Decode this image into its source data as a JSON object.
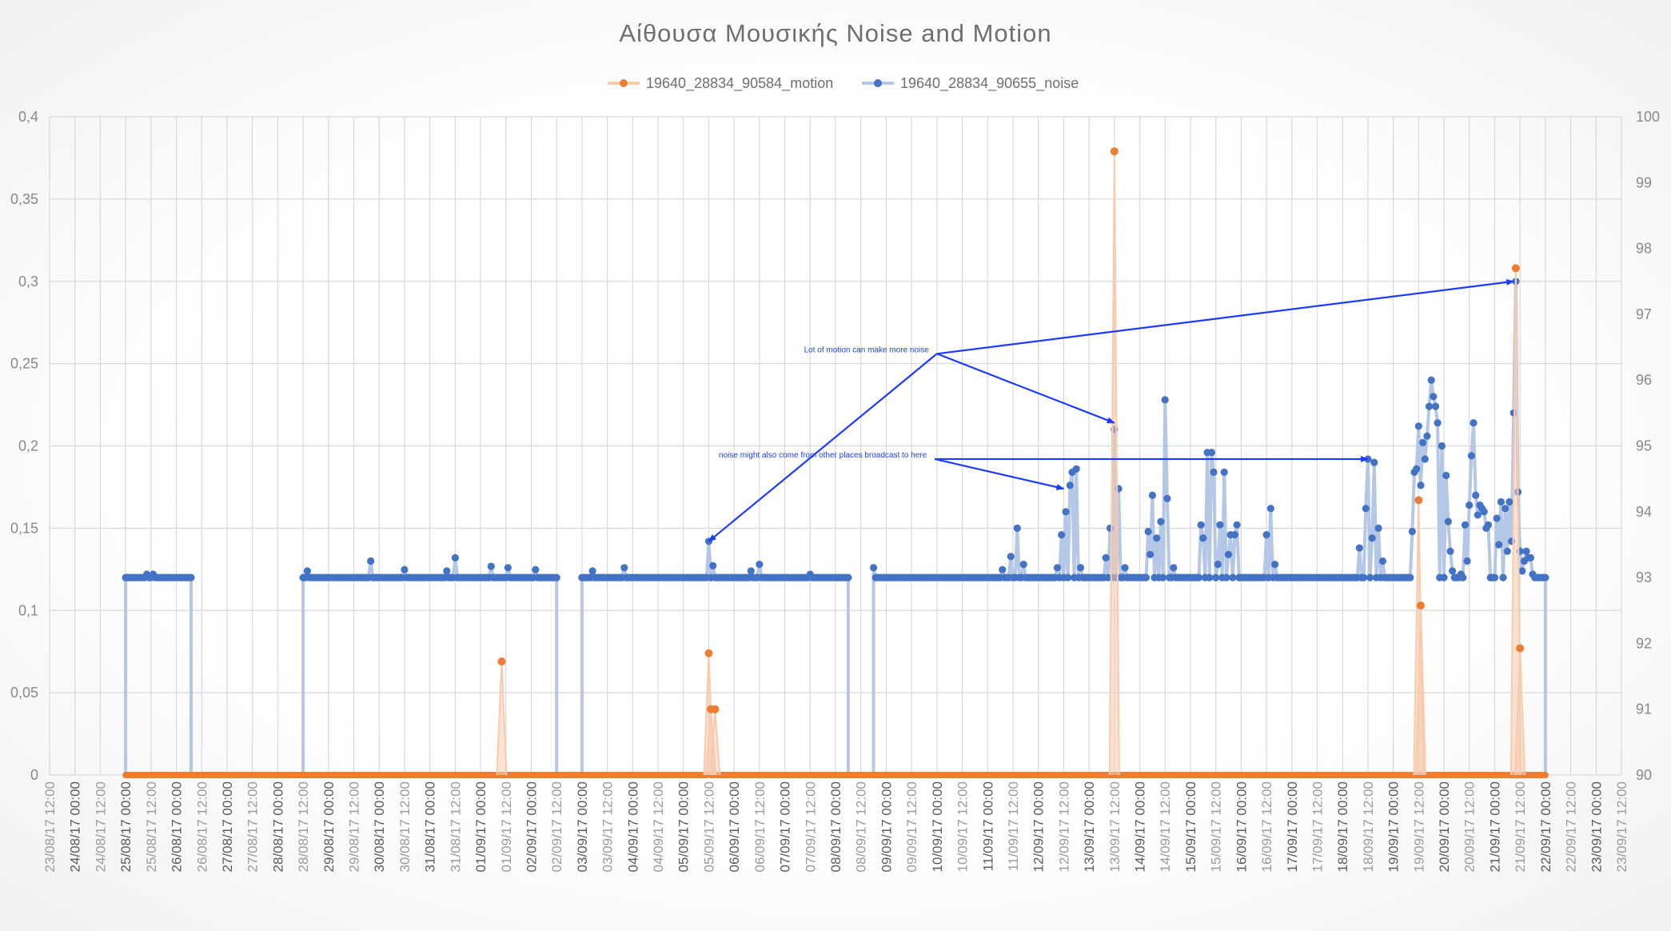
{
  "chart_data": {
    "type": "line",
    "title": "Αίθουσα Μουσικής Noise and Motion",
    "legend": {
      "placement": "top-center"
    },
    "grid": true,
    "x_range": [
      "23/08/17 12:00",
      "23/09/17 12:00"
    ],
    "x_tick_labels": [
      "23/08/17 12:00",
      "24/08/17 00:00",
      "24/08/17 12:00",
      "25/08/17 00:00",
      "25/08/17 12:00",
      "26/08/17 00:00",
      "26/08/17 12:00",
      "27/08/17 00:00",
      "27/08/17 12:00",
      "28/08/17 00:00",
      "28/08/17 12:00",
      "29/08/17 00:00",
      "29/08/17 12:00",
      "30/08/17 00:00",
      "30/08/17 12:00",
      "31/08/17 00:00",
      "31/08/17 12:00",
      "01/09/17 00:00",
      "01/09/17 12:00",
      "02/09/17 00:00",
      "02/09/17 12:00",
      "03/09/17 00:00",
      "03/09/17 12:00",
      "04/09/17 00:00",
      "04/09/17 12:00",
      "05/09/17 00:00",
      "05/09/17 12:00",
      "06/09/17 00:00",
      "06/09/17 12:00",
      "07/09/17 00:00",
      "07/09/17 12:00",
      "08/09/17 00:00",
      "08/09/17 12:00",
      "09/09/17 00:00",
      "09/09/17 12:00",
      "10/09/17 00:00",
      "10/09/17 12:00",
      "11/09/17 00:00",
      "11/09/17 12:00",
      "12/09/17 00:00",
      "12/09/17 12:00",
      "13/09/17 00:00",
      "13/09/17 12:00",
      "14/09/17 00:00",
      "14/09/17 12:00",
      "15/09/17 00:00",
      "15/09/17 12:00",
      "16/09/17 00:00",
      "16/09/17 12:00",
      "17/09/17 00:00",
      "17/09/17 12:00",
      "18/09/17 00:00",
      "18/09/17 12:00",
      "19/09/17 00:00",
      "19/09/17 12:00",
      "20/09/17 00:00",
      "20/09/17 12:00",
      "21/09/17 00:00",
      "21/09/17 12:00",
      "22/09/17 00:00",
      "22/09/17 12:00",
      "23/09/17 00:00",
      "23/09/17 12:00"
    ],
    "y_left": {
      "min": 0,
      "max": 0.4,
      "ticks": [
        "0",
        "0,05",
        "0,1",
        "0,15",
        "0,2",
        "0,25",
        "0,3",
        "0,35",
        "0,4"
      ]
    },
    "y_right": {
      "min": 90,
      "max": 100,
      "ticks": [
        "90",
        "91",
        "92",
        "93",
        "94",
        "95",
        "96",
        "97",
        "98",
        "99",
        "100"
      ]
    },
    "series": [
      {
        "name": "19640_28834_90584_motion",
        "axis": "left",
        "color": "#ED7D31",
        "line_color": "#F8CBAD",
        "x": [
          "25/08/17 00:00",
          "05/09/17 11:00",
          "05/09/17 13:00",
          "13/09/17 12:00",
          "19/09/17 12:00",
          "21/09/17 11:00",
          "22/09/17 00:00"
        ],
        "y": [
          0,
          0,
          0,
          0,
          0,
          0,
          0
        ],
        "gaps_after": [
          0,
          1
        ],
        "range_baseline": true,
        "points": [
          {
            "x": "01/09/17 10:00",
            "y": 0.069
          },
          {
            "x": "05/09/17 12:00",
            "y": 0.074
          },
          {
            "x": "05/09/17 13:00",
            "y": 0.04
          },
          {
            "x": "05/09/17 15:00",
            "y": 0.04
          },
          {
            "x": "13/09/17 12:00",
            "y": 0.379
          },
          {
            "x": "19/09/17 12:00",
            "y": 0.167
          },
          {
            "x": "19/09/17 13:00",
            "y": 0.103
          },
          {
            "x": "21/09/17 10:00",
            "y": 0.308
          },
          {
            "x": "21/09/17 12:00",
            "y": 0.077
          }
        ]
      },
      {
        "name": "19640_28834_90655_noise",
        "axis": "right",
        "color": "#4472C4",
        "line_color": "#B4C7E7",
        "segments": [
          {
            "from": "25/08/17 00:00",
            "to": "26/08/17 07:00",
            "base": 93.0,
            "bumps": [
              [
                "25/08/17 10:00",
                93.05
              ],
              [
                "25/08/17 13:00",
                93.05
              ]
            ]
          },
          {
            "from": "28/08/17 12:00",
            "to": "02/09/17 12:00",
            "base": 93.0,
            "bumps": [
              [
                "28/08/17 14:00",
                93.1
              ],
              [
                "29/08/17 20:00",
                93.25
              ],
              [
                "30/08/17 12:00",
                93.12
              ],
              [
                "31/08/17 08:00",
                93.1
              ],
              [
                "31/08/17 12:00",
                93.3
              ],
              [
                "01/09/17 05:00",
                93.17
              ],
              [
                "01/09/17 13:00",
                93.15
              ],
              [
                "02/09/17 02:00",
                93.12
              ]
            ]
          },
          {
            "from": "03/09/17 00:00",
            "to": "08/09/17 06:00",
            "base": 93.0,
            "bumps": [
              [
                "03/09/17 05:00",
                93.1
              ],
              [
                "03/09/17 20:00",
                93.15
              ],
              [
                "05/09/17 12:00",
                93.55
              ],
              [
                "05/09/17 14:00",
                93.18
              ],
              [
                "06/09/17 08:00",
                93.1
              ],
              [
                "06/09/17 12:00",
                93.2
              ],
              [
                "07/09/17 12:00",
                93.05
              ]
            ]
          },
          {
            "from": "08/09/17 18:00",
            "to": "22/09/17 00:00",
            "base": 93.0,
            "bumps": [
              [
                "08/09/17 18:00",
                93.15
              ],
              [
                "11/09/17 07:00",
                93.12
              ],
              [
                "11/09/17 11:00",
                93.32
              ],
              [
                "11/09/17 14:00",
                93.75
              ],
              [
                "11/09/17 17:00",
                93.2
              ],
              [
                "12/09/17 09:00",
                93.15
              ],
              [
                "12/09/17 11:00",
                93.65
              ],
              [
                "12/09/17 13:00",
                94.0
              ],
              [
                "12/09/17 15:00",
                94.4
              ],
              [
                "12/09/17 16:00",
                94.6
              ],
              [
                "12/09/17 18:00",
                94.65
              ],
              [
                "12/09/17 20:00",
                93.15
              ],
              [
                "13/09/17 08:00",
                93.3
              ],
              [
                "13/09/17 10:00",
                93.75
              ],
              [
                "13/09/17 12:00",
                95.25
              ],
              [
                "13/09/17 14:00",
                94.35
              ],
              [
                "13/09/17 17:00",
                93.15
              ],
              [
                "14/09/17 04:00",
                93.7
              ],
              [
                "14/09/17 05:00",
                93.35
              ],
              [
                "14/09/17 06:00",
                94.25
              ],
              [
                "14/09/17 08:00",
                93.6
              ],
              [
                "14/09/17 10:00",
                93.85
              ],
              [
                "14/09/17 12:00",
                95.7
              ],
              [
                "14/09/17 13:00",
                94.2
              ],
              [
                "14/09/17 16:00",
                93.15
              ],
              [
                "15/09/17 05:00",
                93.8
              ],
              [
                "15/09/17 06:00",
                93.6
              ],
              [
                "15/09/17 08:00",
                94.9
              ],
              [
                "15/09/17 10:00",
                94.9
              ],
              [
                "15/09/17 11:00",
                94.6
              ],
              [
                "15/09/17 13:00",
                93.2
              ],
              [
                "15/09/17 14:00",
                93.8
              ],
              [
                "15/09/17 16:00",
                94.6
              ],
              [
                "15/09/17 18:00",
                93.35
              ],
              [
                "15/09/17 19:00",
                93.65
              ],
              [
                "15/09/17 21:00",
                93.65
              ],
              [
                "15/09/17 22:00",
                93.8
              ],
              [
                "16/09/17 12:00",
                93.65
              ],
              [
                "16/09/17 14:00",
                94.05
              ],
              [
                "16/09/17 16:00",
                93.2
              ],
              [
                "18/09/17 08:00",
                93.45
              ],
              [
                "18/09/17 11:00",
                94.05
              ],
              [
                "18/09/17 12:00",
                94.8
              ],
              [
                "18/09/17 14:00",
                93.6
              ],
              [
                "18/09/17 15:00",
                94.75
              ],
              [
                "18/09/17 17:00",
                93.75
              ],
              [
                "18/09/17 19:00",
                93.25
              ],
              [
                "19/09/17 09:00",
                93.7
              ],
              [
                "19/09/17 10:00",
                94.6
              ],
              [
                "19/09/17 11:00",
                94.65
              ],
              [
                "19/09/17 12:00",
                95.3
              ],
              [
                "19/09/17 13:00",
                94.4
              ],
              [
                "19/09/17 14:00",
                95.05
              ],
              [
                "19/09/17 15:00",
                94.8
              ],
              [
                "19/09/17 16:00",
                95.15
              ],
              [
                "19/09/17 17:00",
                95.6
              ],
              [
                "19/09/17 18:00",
                96.0
              ],
              [
                "19/09/17 19:00",
                95.75
              ],
              [
                "19/09/17 20:00",
                95.6
              ],
              [
                "19/09/17 21:00",
                95.35
              ],
              [
                "19/09/17 23:00",
                95.0
              ],
              [
                "20/09/17 01:00",
                94.55
              ],
              [
                "20/09/17 02:00",
                93.85
              ],
              [
                "20/09/17 03:00",
                93.4
              ],
              [
                "20/09/17 04:00",
                93.1
              ],
              [
                "20/09/17 06:00",
                93.0
              ],
              [
                "20/09/17 08:00",
                93.05
              ],
              [
                "20/09/17 10:00",
                93.8
              ],
              [
                "20/09/17 11:00",
                93.25
              ],
              [
                "20/09/17 12:00",
                94.1
              ],
              [
                "20/09/17 13:00",
                94.85
              ],
              [
                "20/09/17 14:00",
                95.35
              ],
              [
                "20/09/17 15:00",
                94.25
              ],
              [
                "20/09/17 16:00",
                93.95
              ],
              [
                "20/09/17 17:00",
                94.1
              ],
              [
                "20/09/17 18:00",
                94.05
              ],
              [
                "20/09/17 19:00",
                94.0
              ],
              [
                "20/09/17 20:00",
                93.75
              ],
              [
                "20/09/17 21:00",
                93.8
              ],
              [
                "21/09/17 01:00",
                93.9
              ],
              [
                "21/09/17 02:00",
                93.5
              ],
              [
                "21/09/17 03:00",
                94.15
              ],
              [
                "21/09/17 05:00",
                94.05
              ],
              [
                "21/09/17 06:00",
                93.4
              ],
              [
                "21/09/17 07:00",
                94.15
              ],
              [
                "21/09/17 08:00",
                93.55
              ],
              [
                "21/09/17 09:00",
                95.5
              ],
              [
                "21/09/17 10:00",
                97.5
              ],
              [
                "21/09/17 11:00",
                94.3
              ],
              [
                "21/09/17 12:00",
                93.4
              ],
              [
                "21/09/17 13:00",
                93.1
              ],
              [
                "21/09/17 14:00",
                93.25
              ],
              [
                "21/09/17 15:00",
                93.4
              ],
              [
                "21/09/17 16:00",
                93.3
              ],
              [
                "21/09/17 17:00",
                93.3
              ],
              [
                "21/09/17 18:00",
                93.05
              ]
            ]
          }
        ]
      }
    ],
    "annotations": [
      {
        "text": "Lot of motion can make more noise",
        "tail": {
          "x": "10/09/17 00:00",
          "y": 96.4
        },
        "heads": [
          {
            "x": "05/09/17 12:00",
            "y": 93.55
          },
          {
            "x": "13/09/17 12:00",
            "y": 95.35
          },
          {
            "x": "21/09/17 09:00",
            "y": 97.5
          }
        ]
      },
      {
        "text": "noise might also come from other places broadcast to here",
        "tail": {
          "x": "09/09/17 23:00",
          "y": 94.8
        },
        "heads": [
          {
            "x": "12/09/17 12:00",
            "y": 94.35
          },
          {
            "x": "18/09/17 12:00",
            "y": 94.8
          }
        ]
      }
    ]
  }
}
